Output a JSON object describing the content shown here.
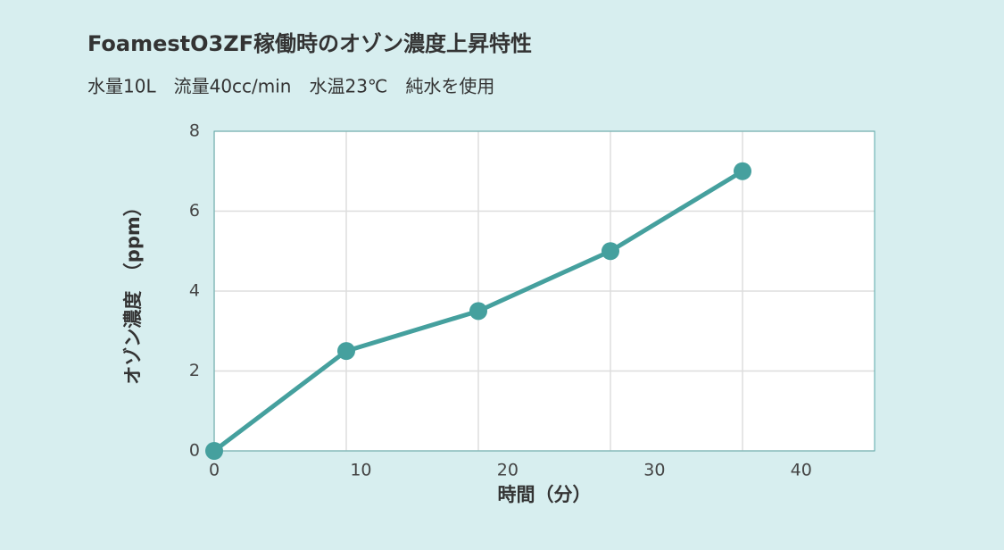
{
  "chart_data": {
    "type": "line",
    "title": "FoamestO3ZF稼働時のオゾン濃度上昇特性",
    "subtitle": "水量10L　流量40cc/min　水温23℃　純水を使用",
    "x_label": "時間（分）",
    "y_label": "オゾン濃度　（ppm）",
    "x": [
      0,
      9,
      18,
      27,
      36
    ],
    "series": [
      {
        "name": "オゾン濃度",
        "color": "#45a09e",
        "values": [
          0,
          2.5,
          3.5,
          5,
          7
        ]
      }
    ],
    "xlim": [
      0,
      45
    ],
    "xticks": [
      0,
      10,
      20,
      30,
      40
    ],
    "ylim": [
      0,
      8
    ],
    "yticks": [
      0,
      2,
      4,
      6,
      8
    ],
    "grid": true
  }
}
